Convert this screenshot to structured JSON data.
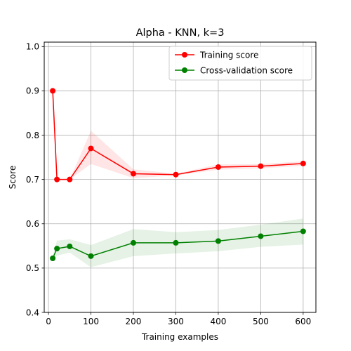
{
  "chart_data": {
    "type": "line",
    "title": "Alpha - KNN, k=3",
    "xlabel": "Training examples",
    "ylabel": "Score",
    "xlim": [
      -10,
      630
    ],
    "ylim": [
      0.4,
      1.01
    ],
    "x_ticks": [
      0,
      100,
      200,
      300,
      400,
      500,
      600
    ],
    "y_ticks": [
      0.4,
      0.5,
      0.6,
      0.7,
      0.8,
      0.9,
      1.0
    ],
    "grid": true,
    "legend_position": "top-right",
    "x": [
      10,
      20,
      50,
      100,
      200,
      300,
      400,
      500,
      600
    ],
    "series": [
      {
        "name": "Training score",
        "color": "#ff0000",
        "values": [
          0.9,
          0.7,
          0.7,
          0.77,
          0.713,
          0.711,
          0.728,
          0.73,
          0.736
        ],
        "band_low": [
          0.9,
          0.7,
          0.7,
          0.735,
          0.703,
          0.709,
          0.722,
          0.725,
          0.731
        ],
        "band_high": [
          0.9,
          0.7,
          0.7,
          0.81,
          0.723,
          0.713,
          0.734,
          0.735,
          0.741
        ]
      },
      {
        "name": "Cross-validation score",
        "color": "#008000",
        "values": [
          0.522,
          0.544,
          0.549,
          0.527,
          0.557,
          0.557,
          0.561,
          0.572,
          0.583
        ],
        "band_low": [
          0.515,
          0.528,
          0.535,
          0.502,
          0.527,
          0.533,
          0.538,
          0.548,
          0.553
        ],
        "band_high": [
          0.528,
          0.562,
          0.565,
          0.552,
          0.588,
          0.581,
          0.586,
          0.598,
          0.612
        ]
      }
    ]
  }
}
